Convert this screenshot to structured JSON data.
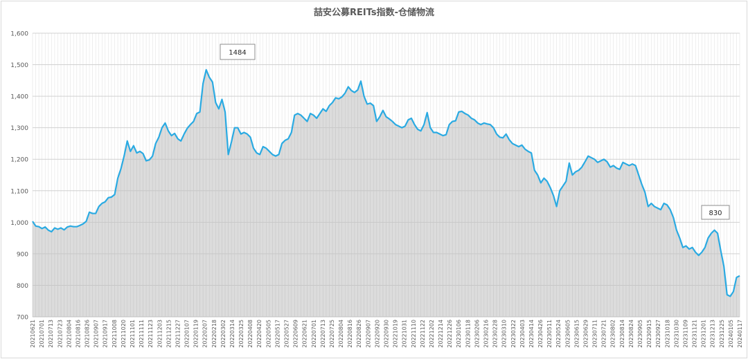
{
  "chart_data": {
    "type": "area",
    "title": "喆安公募REITs指数-仓储物流",
    "xlabel": "",
    "ylabel": "",
    "ylim": [
      700,
      1600
    ],
    "yticks": [
      700,
      800,
      900,
      1000,
      1100,
      1200,
      1300,
      1400,
      1500,
      1600
    ],
    "ytick_labels": [
      "700",
      "800",
      "900",
      "1,000",
      "1,100",
      "1,200",
      "1,300",
      "1,400",
      "1,500",
      "1,600"
    ],
    "grid": true,
    "legend": "none",
    "x_tick_labels": [
      "20210621",
      "20210701",
      "20210713",
      "20210723",
      "20210804",
      "20210816",
      "20210826",
      "20210907",
      "20210917",
      "20211008",
      "20211020",
      "20211101",
      "20211111",
      "20211123",
      "20211203",
      "20211215",
      "20211227",
      "20220107",
      "20220119",
      "20220207",
      "20220218",
      "20220302",
      "20220314",
      "20220325",
      "20220408",
      "20220420",
      "20220505",
      "20220517",
      "20220527",
      "20220609",
      "20220621",
      "20220701",
      "20220713",
      "20220725",
      "20220804",
      "20220816",
      "20220826",
      "20220907",
      "20220920",
      "20220930",
      "20221019",
      "20221031",
      "20221110",
      "20221122",
      "20221202",
      "20221214",
      "20221226",
      "20230106",
      "20230118",
      "20230206",
      "20230216",
      "20230228",
      "20230310",
      "20230322",
      "20230403",
      "20230414",
      "20230426",
      "20230511",
      "20230524",
      "20230605",
      "20230615",
      "20230629",
      "20230711",
      "20230721",
      "20230802",
      "20230814",
      "20230824",
      "20230905",
      "20230915",
      "20230927",
      "20231018",
      "20231030",
      "20231109",
      "20231121",
      "20231201",
      "20231213",
      "20231225",
      "20240105",
      "20240117"
    ],
    "series": [
      {
        "values": [
          1003,
          988,
          986,
          980,
          985,
          975,
          970,
          982,
          978,
          982,
          976,
          985,
          988,
          986,
          986,
          990,
          995,
          1003,
          1032,
          1028,
          1028,
          1050,
          1060,
          1065,
          1078,
          1080,
          1088,
          1140,
          1170,
          1210,
          1258,
          1225,
          1243,
          1220,
          1225,
          1218,
          1195,
          1198,
          1210,
          1250,
          1270,
          1300,
          1315,
          1290,
          1275,
          1282,
          1265,
          1258,
          1280,
          1298,
          1310,
          1320,
          1345,
          1350,
          1440,
          1484,
          1460,
          1445,
          1380,
          1360,
          1390,
          1350,
          1215,
          1255,
          1300,
          1300,
          1280,
          1285,
          1280,
          1270,
          1235,
          1220,
          1215,
          1240,
          1235,
          1225,
          1215,
          1210,
          1215,
          1250,
          1260,
          1265,
          1285,
          1340,
          1345,
          1340,
          1330,
          1320,
          1345,
          1340,
          1330,
          1345,
          1360,
          1352,
          1370,
          1380,
          1395,
          1392,
          1398,
          1410,
          1430,
          1418,
          1412,
          1420,
          1448,
          1400,
          1375,
          1378,
          1370,
          1320,
          1335,
          1355,
          1335,
          1328,
          1320,
          1310,
          1305,
          1300,
          1305,
          1325,
          1330,
          1310,
          1295,
          1290,
          1310,
          1348,
          1300,
          1285,
          1285,
          1280,
          1275,
          1278,
          1310,
          1320,
          1322,
          1350,
          1352,
          1345,
          1340,
          1330,
          1325,
          1315,
          1310,
          1315,
          1312,
          1310,
          1300,
          1280,
          1270,
          1268,
          1280,
          1262,
          1250,
          1245,
          1240,
          1245,
          1232,
          1225,
          1220,
          1165,
          1150,
          1125,
          1140,
          1130,
          1110,
          1085,
          1050,
          1100,
          1115,
          1130,
          1188,
          1150,
          1160,
          1165,
          1175,
          1192,
          1210,
          1205,
          1200,
          1190,
          1195,
          1200,
          1192,
          1175,
          1180,
          1172,
          1168,
          1190,
          1185,
          1180,
          1185,
          1180,
          1150,
          1120,
          1095,
          1050,
          1060,
          1050,
          1045,
          1040,
          1060,
          1055,
          1040,
          1015,
          975,
          950,
          920,
          925,
          915,
          920,
          905,
          895,
          905,
          920,
          950,
          965,
          975,
          965,
          910,
          860,
          770,
          765,
          780,
          825,
          830
        ]
      }
    ],
    "annotations": [
      {
        "text": "1484",
        "index": 55,
        "value": 1484
      },
      {
        "text": "830",
        "index": 227,
        "value": 830
      }
    ]
  }
}
